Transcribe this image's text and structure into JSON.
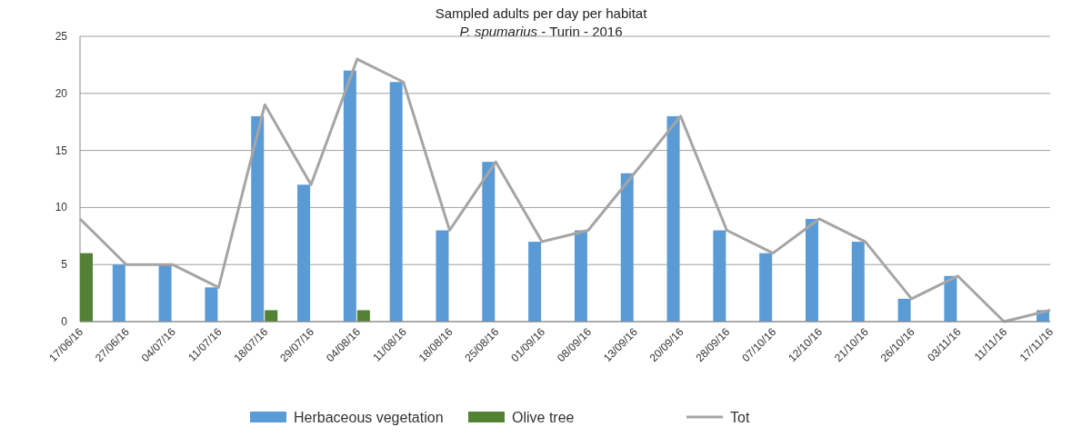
{
  "chart_data": {
    "type": "bar",
    "title": "Sampled adults per day per habitat",
    "subtitle": "P. spumarius - Turin - 2016",
    "categories": [
      "17/06/16",
      "27/06/16",
      "04/07/16",
      "11/07/16",
      "18/07/16",
      "29/07/16",
      "04/08/16",
      "11/08/16",
      "18/08/16",
      "25/08/16",
      "01/09/16",
      "08/09/16",
      "13/09/16",
      "20/09/16",
      "28/09/16",
      "07/10/16",
      "12/10/16",
      "21/10/16",
      "26/10/16",
      "03/11/16",
      "11/11/16",
      "17/11/16"
    ],
    "series": [
      {
        "name": "Herbaceous vegetation",
        "color": "#5b9bd5",
        "values": [
          0,
          5,
          5,
          3,
          18,
          12,
          22,
          21,
          8,
          14,
          7,
          8,
          13,
          18,
          8,
          6,
          9,
          7,
          2,
          4,
          0,
          1
        ]
      },
      {
        "name": "Olive tree",
        "color": "#548235",
        "values": [
          6,
          0,
          0,
          0,
          1,
          0,
          1,
          0,
          0,
          0,
          0,
          0,
          0,
          0,
          0,
          0,
          0,
          0,
          0,
          0,
          0,
          0
        ]
      },
      {
        "name": "Tot",
        "type": "line",
        "color": "#a5a5a5",
        "values": [
          9,
          5,
          5,
          3,
          19,
          12,
          23,
          21,
          8,
          14,
          7,
          8,
          13,
          18,
          8,
          6,
          9,
          7,
          2,
          4,
          0,
          1
        ]
      }
    ],
    "ylim": [
      0,
      25
    ],
    "yticks": [
      0,
      5,
      10,
      15,
      20,
      25
    ],
    "grid": "y",
    "legend": "bottom",
    "marker": "none",
    "line_style": "solid"
  }
}
